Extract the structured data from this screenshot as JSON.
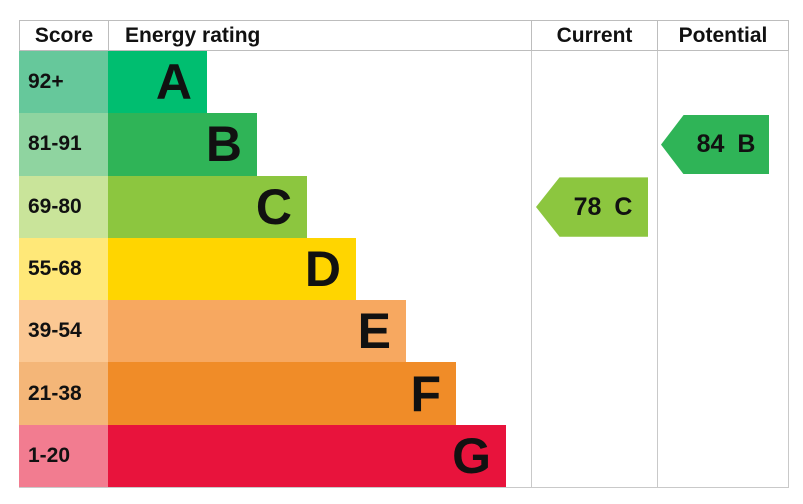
{
  "header": {
    "score": "Score",
    "energy_rating": "Energy rating",
    "current": "Current",
    "potential": "Potential"
  },
  "chart_data": {
    "type": "bar",
    "title": "Energy rating",
    "columns": [
      "Score",
      "Energy rating",
      "Current",
      "Potential"
    ],
    "bands": [
      {
        "grade": "A",
        "score_range": "92+",
        "color": "#00be70",
        "tint": "#66c89b"
      },
      {
        "grade": "B",
        "score_range": "81-91",
        "color": "#2fb457",
        "tint": "#8fd4a0"
      },
      {
        "grade": "C",
        "score_range": "69-80",
        "color": "#8cc63f",
        "tint": "#c9e49a"
      },
      {
        "grade": "D",
        "score_range": "55-68",
        "color": "#ffd500",
        "tint": "#ffe878"
      },
      {
        "grade": "E",
        "score_range": "39-54",
        "color": "#f7a860",
        "tint": "#fbc893"
      },
      {
        "grade": "F",
        "score_range": "21-38",
        "color": "#f08c28",
        "tint": "#f4b678"
      },
      {
        "grade": "G",
        "score_range": "1-20",
        "color": "#e8133c",
        "tint": "#f27c90"
      }
    ],
    "current": {
      "score": 78,
      "band": "C",
      "color": "#8cc63f"
    },
    "potential": {
      "score": 84,
      "band": "B",
      "color": "#2fb457"
    }
  }
}
